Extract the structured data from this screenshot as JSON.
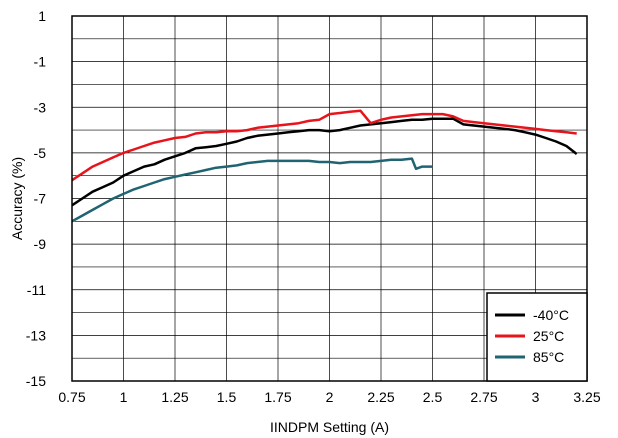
{
  "chart_data": {
    "type": "line",
    "title": "",
    "xlabel": "IINDPM Setting (A)",
    "ylabel": "Accuracy (%)",
    "xlim": [
      0.75,
      3.25
    ],
    "ylim": [
      -15,
      1
    ],
    "x_ticks": [
      0.75,
      1,
      1.25,
      1.5,
      1.75,
      2,
      2.25,
      2.5,
      2.75,
      3,
      3.25
    ],
    "x_tick_labels": [
      "0.75",
      "1",
      "1.25",
      "1.5",
      "1.75",
      "2",
      "2.25",
      "2.5",
      "2.75",
      "3",
      "3.25"
    ],
    "y_ticks": [
      1,
      -1,
      -3,
      -5,
      -7,
      -9,
      -11,
      -13,
      -15
    ],
    "y_tick_labels": [
      "1",
      "-1",
      "-3",
      "-5",
      "-7",
      "-9",
      "-11",
      "-13",
      "-15"
    ],
    "grid": true,
    "legend_position": "bottom-right",
    "series": [
      {
        "name": "-40°C",
        "color": "#000000",
        "x": [
          0.75,
          0.8,
          0.85,
          0.9,
          0.95,
          1.0,
          1.05,
          1.1,
          1.15,
          1.2,
          1.25,
          1.3,
          1.35,
          1.4,
          1.45,
          1.5,
          1.55,
          1.6,
          1.65,
          1.7,
          1.75,
          1.8,
          1.85,
          1.9,
          1.95,
          2.0,
          2.05,
          2.1,
          2.15,
          2.2,
          2.25,
          2.3,
          2.35,
          2.4,
          2.45,
          2.5,
          2.55,
          2.6,
          2.65,
          2.7,
          2.75,
          2.8,
          2.85,
          2.9,
          2.95,
          3.0,
          3.05,
          3.1,
          3.15,
          3.2
        ],
        "y": [
          -7.3,
          -7.0,
          -6.7,
          -6.5,
          -6.3,
          -6.0,
          -5.8,
          -5.6,
          -5.5,
          -5.3,
          -5.15,
          -5.0,
          -4.8,
          -4.75,
          -4.7,
          -4.6,
          -4.5,
          -4.35,
          -4.25,
          -4.2,
          -4.15,
          -4.1,
          -4.05,
          -4.0,
          -4.0,
          -4.05,
          -4.0,
          -3.9,
          -3.8,
          -3.75,
          -3.7,
          -3.65,
          -3.6,
          -3.55,
          -3.55,
          -3.5,
          -3.5,
          -3.5,
          -3.75,
          -3.8,
          -3.85,
          -3.9,
          -3.95,
          -4.0,
          -4.1,
          -4.2,
          -4.35,
          -4.5,
          -4.7,
          -5.05
        ]
      },
      {
        "name": "25°C",
        "color": "#e8141c",
        "x": [
          0.75,
          0.8,
          0.85,
          0.9,
          0.95,
          1.0,
          1.05,
          1.1,
          1.15,
          1.2,
          1.25,
          1.3,
          1.35,
          1.4,
          1.45,
          1.5,
          1.55,
          1.6,
          1.65,
          1.7,
          1.75,
          1.8,
          1.85,
          1.9,
          1.95,
          2.0,
          2.05,
          2.1,
          2.15,
          2.2,
          2.25,
          2.3,
          2.35,
          2.4,
          2.45,
          2.5,
          2.55,
          2.6,
          2.65,
          2.7,
          2.75,
          2.8,
          2.85,
          2.9,
          2.95,
          3.0,
          3.05,
          3.1,
          3.15,
          3.2
        ],
        "y": [
          -6.2,
          -5.9,
          -5.6,
          -5.4,
          -5.2,
          -5.0,
          -4.85,
          -4.7,
          -4.55,
          -4.45,
          -4.35,
          -4.3,
          -4.15,
          -4.1,
          -4.1,
          -4.05,
          -4.05,
          -4.0,
          -3.9,
          -3.85,
          -3.8,
          -3.75,
          -3.7,
          -3.6,
          -3.55,
          -3.3,
          -3.25,
          -3.2,
          -3.15,
          -3.7,
          -3.55,
          -3.45,
          -3.4,
          -3.35,
          -3.3,
          -3.3,
          -3.3,
          -3.4,
          -3.6,
          -3.65,
          -3.7,
          -3.75,
          -3.8,
          -3.85,
          -3.9,
          -3.95,
          -4.0,
          -4.05,
          -4.1,
          -4.15
        ]
      },
      {
        "name": "85°C",
        "color": "#1f6470",
        "x": [
          0.75,
          0.8,
          0.85,
          0.9,
          0.95,
          1.0,
          1.05,
          1.1,
          1.15,
          1.2,
          1.25,
          1.3,
          1.35,
          1.4,
          1.45,
          1.5,
          1.55,
          1.6,
          1.65,
          1.7,
          1.75,
          1.8,
          1.85,
          1.9,
          1.95,
          2.0,
          2.05,
          2.1,
          2.15,
          2.2,
          2.25,
          2.3,
          2.35,
          2.4,
          2.42,
          2.45,
          2.5
        ],
        "y": [
          -8.0,
          -7.75,
          -7.5,
          -7.25,
          -7.0,
          -6.8,
          -6.6,
          -6.45,
          -6.3,
          -6.15,
          -6.05,
          -5.95,
          -5.85,
          -5.75,
          -5.65,
          -5.6,
          -5.55,
          -5.45,
          -5.4,
          -5.35,
          -5.35,
          -5.35,
          -5.35,
          -5.35,
          -5.4,
          -5.4,
          -5.45,
          -5.4,
          -5.4,
          -5.4,
          -5.35,
          -5.3,
          -5.3,
          -5.25,
          -5.7,
          -5.6,
          -5.6
        ]
      }
    ]
  }
}
